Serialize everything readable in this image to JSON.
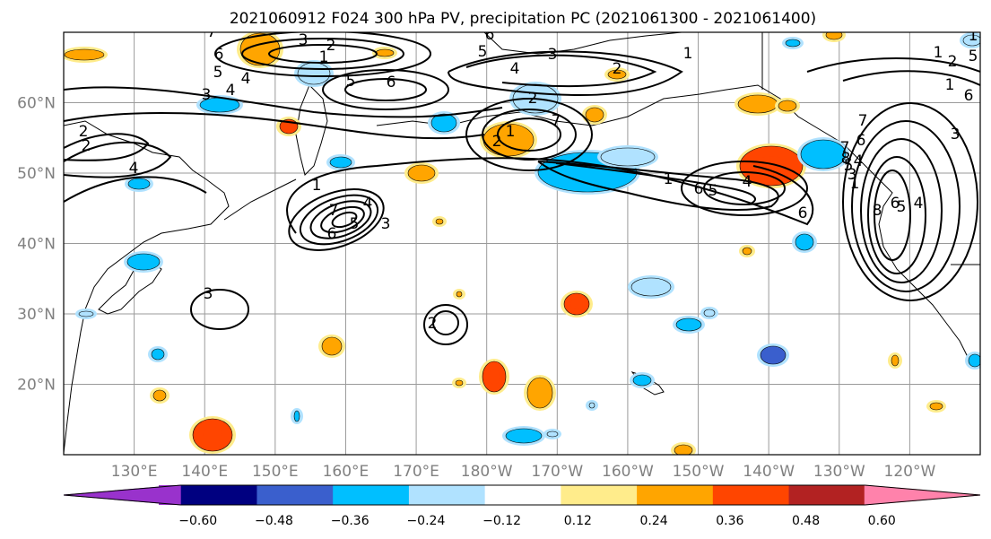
{
  "title": "2021060912 F024 300 hPa PV, precipitation PC (2021061300 - 2021061400)",
  "map": {
    "lat_labels": [
      "60°N",
      "50°N",
      "40°N",
      "30°N",
      "20°N"
    ],
    "lon_labels": [
      "130°E",
      "140°E",
      "150°E",
      "160°E",
      "170°E",
      "180°W",
      "170°W",
      "160°W",
      "150°W",
      "140°W",
      "130°W",
      "120°W"
    ],
    "grid": true,
    "extent": {
      "lon_min": 120,
      "lon_max": 250,
      "lat_min": 10,
      "lat_max": 70
    },
    "contour_color": "#000000",
    "contour_labels": [
      "7",
      "6",
      "5",
      "4",
      "3",
      "2",
      "1",
      "6",
      "5",
      "4",
      "3",
      "2",
      "2",
      "4",
      "3",
      "2",
      "1",
      "7",
      "6",
      "5",
      "4",
      "3",
      "2",
      "1",
      "2",
      "7",
      "6",
      "5",
      "4",
      "3",
      "2",
      "1",
      "1",
      "6",
      "5",
      "4",
      "6",
      "7",
      "8",
      "6",
      "5",
      "4",
      "3",
      "2",
      "1",
      "1",
      "6",
      "1",
      "5",
      "4",
      "6",
      "8",
      "7",
      "5",
      "3",
      "1"
    ]
  },
  "colorbar": {
    "labels": [
      "−0.60",
      "−0.48",
      "−0.36",
      "−0.24",
      "−0.12",
      "0.12",
      "0.24",
      "0.36",
      "0.48",
      "0.60"
    ],
    "colors": [
      "#9932cc",
      "#000080",
      "#3a5fcd",
      "#00bfff",
      "#b0e2ff",
      "#ffffff",
      "#ffec8b",
      "#ffa500",
      "#ff4500",
      "#b22222",
      "#ff82ab"
    ]
  }
}
